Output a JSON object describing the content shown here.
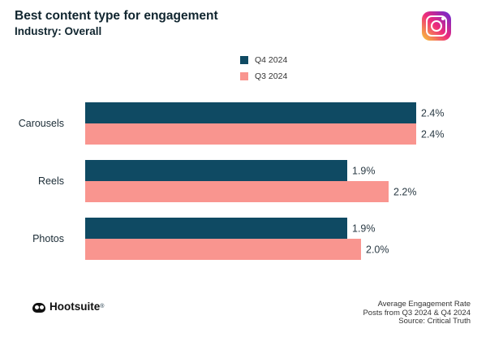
{
  "header": {
    "title": "Best content type for engagement",
    "subtitle": "Industry: Overall"
  },
  "icons": {
    "platform": "instagram-icon",
    "brand": "owl-icon"
  },
  "legend": [
    {
      "label": "Q4 2024",
      "color": "#0f4a63"
    },
    {
      "label": "Q3 2024",
      "color": "#f9958f"
    }
  ],
  "chart_data": {
    "type": "bar",
    "orientation": "horizontal",
    "title": "Best content type for engagement",
    "subtitle": "Industry: Overall",
    "categories": [
      "Carousels",
      "Reels",
      "Photos"
    ],
    "series": [
      {
        "name": "Q4 2024",
        "values": [
          2.4,
          1.9,
          1.9
        ],
        "labels": [
          "2.4%",
          "1.9%",
          "1.9%"
        ],
        "color": "#0f4a63"
      },
      {
        "name": "Q3 2024",
        "values": [
          2.4,
          2.2,
          2.0
        ],
        "labels": [
          "2.4%",
          "2.2%",
          "2.0%"
        ],
        "color": "#f9958f"
      }
    ],
    "xlim": [
      0,
      2.4
    ],
    "xlabel": "",
    "ylabel": "",
    "grid": false,
    "legend_position": "top-center"
  },
  "footer": {
    "brand": "Hootsuite",
    "trademark": "®",
    "notes": [
      "Average Engagement Rate",
      "Posts from Q3 2024 & Q4 2024",
      "Source: Critical Truth"
    ]
  }
}
